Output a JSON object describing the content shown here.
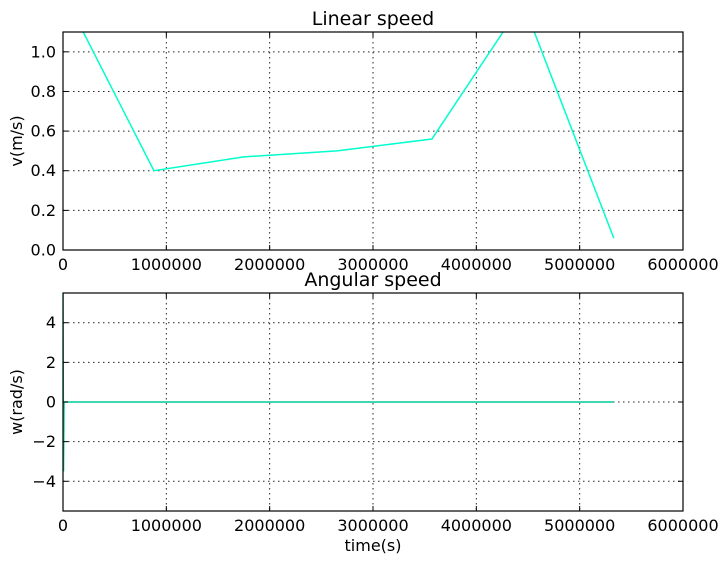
{
  "chart_data": [
    {
      "type": "line",
      "title": "Linear speed",
      "xlabel": "",
      "ylabel": "v(m/s)",
      "xlim": [
        0,
        6000000
      ],
      "ylim": [
        0,
        1.1
      ],
      "xticks": [
        0,
        1000000,
        2000000,
        3000000,
        4000000,
        5000000,
        6000000
      ],
      "xtick_labels": [
        "0",
        "1000000",
        "2000000",
        "3000000",
        "4000000",
        "5000000",
        "6000000"
      ],
      "yticks": [
        0,
        0.2,
        0.4,
        0.6,
        0.8,
        1.0
      ],
      "ytick_labels": [
        "0.0",
        "0.2",
        "0.4",
        "0.6",
        "0.8",
        "1.0"
      ],
      "grid": true,
      "series": [
        {
          "color": "#00ffcc",
          "x": [
            0,
            880000,
            1750000,
            2650000,
            3570000,
            4450000,
            5330000
          ],
          "y": [
            1.3,
            0.4,
            0.47,
            0.5,
            0.56,
            1.25,
            0.06
          ]
        }
      ]
    },
    {
      "type": "line",
      "title": "Angular speed",
      "xlabel": "time(s)",
      "ylabel": "w(rad/s)",
      "xlim": [
        0,
        6000000
      ],
      "ylim": [
        -5.5,
        5.5
      ],
      "xticks": [
        0,
        1000000,
        2000000,
        3000000,
        4000000,
        5000000,
        6000000
      ],
      "xtick_labels": [
        "0",
        "1000000",
        "2000000",
        "3000000",
        "4000000",
        "5000000",
        "6000000"
      ],
      "yticks": [
        -4,
        -2,
        0,
        2,
        4
      ],
      "ytick_labels": [
        "−4",
        "−2",
        "0",
        "2",
        "4"
      ],
      "grid": true,
      "series": [
        {
          "color": "#00cc99",
          "x": [
            0,
            5000,
            10000,
            20000,
            30000,
            5330000
          ],
          "y": [
            5.5,
            -3.5,
            0,
            0,
            0,
            0
          ]
        }
      ]
    }
  ]
}
